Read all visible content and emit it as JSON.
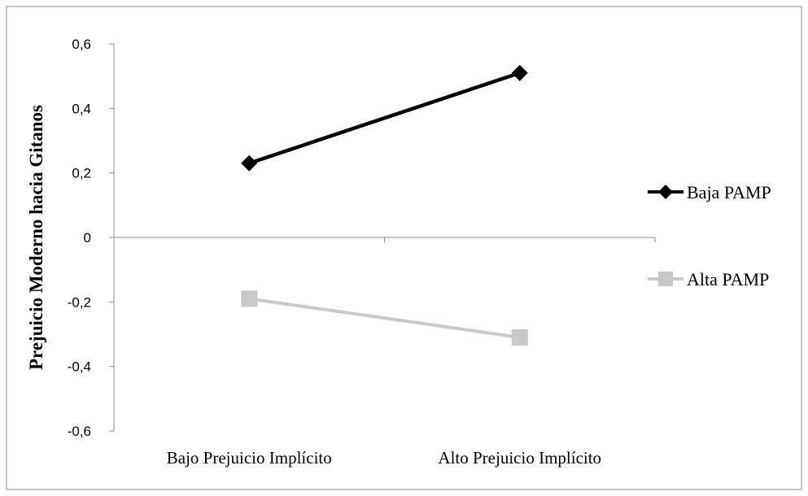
{
  "chart_data": {
    "type": "line",
    "title": "",
    "xlabel": "",
    "ylabel": "Prejuicio Moderno hacia Gitanos",
    "categories": [
      "Bajo Prejuicio Implícito",
      "Alto Prejuicio Implícito"
    ],
    "ylim": [
      -0.6,
      0.6
    ],
    "yticks": [
      0.6,
      0.4,
      0.2,
      0,
      -0.2,
      -0.4,
      -0.6
    ],
    "ytick_labels": [
      "0,6",
      "0,4",
      "0,2",
      "0",
      "-0,2",
      "-0,4",
      "-0,6"
    ],
    "grid": false,
    "legend_position": "right",
    "series": [
      {
        "name": "Baja PAMP",
        "values": [
          0.23,
          0.51
        ],
        "color": "#000000",
        "marker": "diamond"
      },
      {
        "name": "Alta PAMP",
        "values": [
          -0.19,
          -0.31
        ],
        "color": "#c8c8c8",
        "marker": "square"
      }
    ]
  }
}
